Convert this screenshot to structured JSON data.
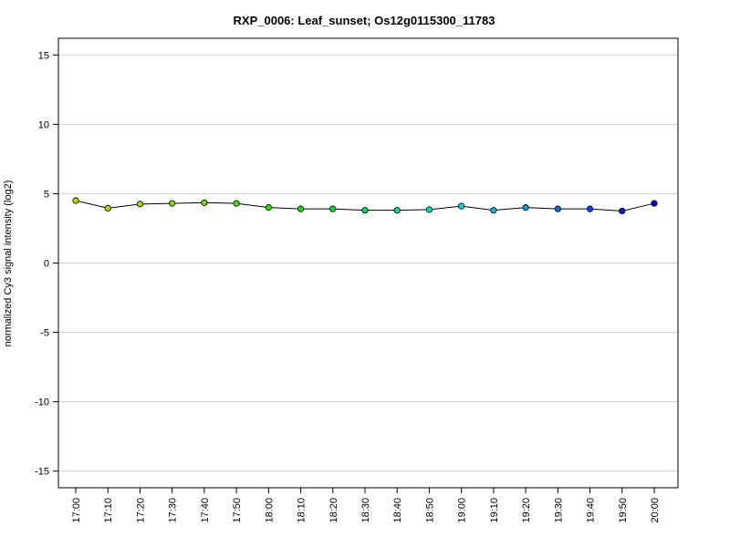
{
  "chart_data": {
    "type": "line",
    "title": "RXP_0006: Leaf_sunset; Os12g0115300_11783",
    "xlabel": "",
    "ylabel": "normalized Cy3 signal intensity (log2)",
    "ylim": [
      -16.2,
      16.2
    ],
    "yticks": [
      15,
      10,
      5,
      0,
      -5,
      -10,
      -15
    ],
    "ytick_labels": [
      "15",
      "10",
      "5",
      "0",
      "-5",
      "-10",
      "-15"
    ],
    "grid": "horizontal",
    "categories": [
      "17:00",
      "17:10",
      "17:20",
      "17:30",
      "17:40",
      "17:50",
      "18:00",
      "18:10",
      "18:20",
      "18:30",
      "18:40",
      "18:50",
      "19:00",
      "19:10",
      "19:20",
      "19:30",
      "19:40",
      "19:50",
      "20:00"
    ],
    "series": [
      {
        "values": [
          4.5,
          3.95,
          4.25,
          4.3,
          4.35,
          4.3,
          4.0,
          3.9,
          3.9,
          3.8,
          3.8,
          3.85,
          4.1,
          3.8,
          4.0,
          3.9,
          3.9,
          3.75,
          4.3
        ],
        "point_colors": [
          "#cccc00",
          "#b8d400",
          "#a0dc00",
          "#88e000",
          "#66e000",
          "#4ce000",
          "#2ce000",
          "#10e010",
          "#00e030",
          "#00e060",
          "#00e090",
          "#00e0c0",
          "#00d8e0",
          "#00b8e0",
          "#0098e0",
          "#0070e0",
          "#0048e0",
          "#0020d8",
          "#0000c8"
        ],
        "line_color": "#000000"
      }
    ]
  }
}
